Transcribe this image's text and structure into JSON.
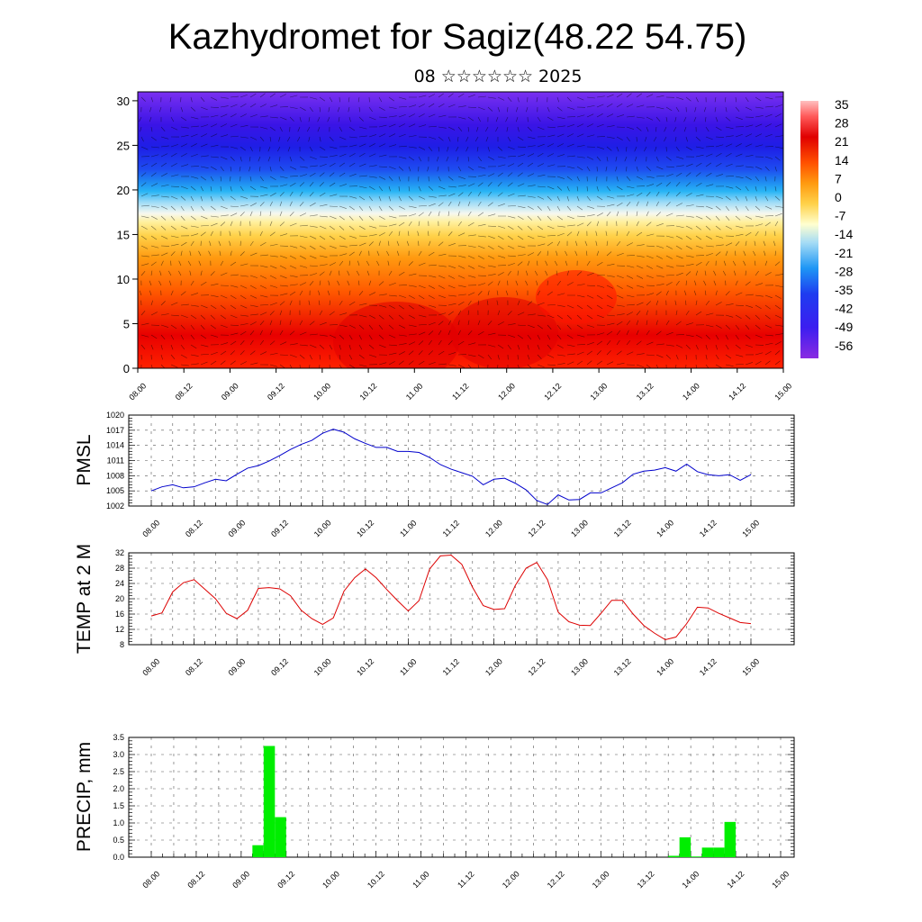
{
  "header": {
    "title": "Kazhydromet for Sagiz(48.22 54.75)",
    "subtitle": "08 ☆☆☆☆☆☆ 2025"
  },
  "colors": {
    "pmsl_line": "#0000cc",
    "temp_line": "#dd0000",
    "precip_bar": "#00ee00",
    "frame": "#000000",
    "grid": "#555555"
  },
  "chart_data": [
    {
      "type": "heatmap",
      "name": "cross-section",
      "x_ticks": [
        "08.00",
        "08.12",
        "09.00",
        "09.12",
        "10.00",
        "10.12",
        "11.00",
        "11.12",
        "12.00",
        "12.12",
        "13.00",
        "13.12",
        "14.00",
        "14.12",
        "15.00"
      ],
      "y_ticks": [
        "0",
        "5",
        "10",
        "15",
        "20",
        "25",
        "30"
      ],
      "ylim": [
        0,
        31
      ],
      "colorbar_labels": [
        "35",
        "28",
        "21",
        "14",
        "7",
        "0",
        "-7",
        "-14",
        "-21",
        "-28",
        "-35",
        "-42",
        "-49",
        "-56"
      ],
      "colorscale": [
        "#8a2be2",
        "#4b1ef0",
        "#1e1ee6",
        "#1e5cf0",
        "#1eaaf5",
        "#8fd3f5",
        "#ffffcc",
        "#ffe066",
        "#ffb31a",
        "#ff7f00",
        "#ff4500",
        "#e60000",
        "#ff6666"
      ],
      "overlay": "wind vectors"
    },
    {
      "type": "line",
      "name": "pmsl",
      "ylabel": "PMSL",
      "ylim": [
        1002,
        1020
      ],
      "y_ticks": [
        "1002",
        "1005",
        "1008",
        "1011",
        "1014",
        "1017",
        "1020"
      ],
      "x_ticks": [
        "08.00",
        "08.12",
        "09.00",
        "09.12",
        "10.00",
        "10.12",
        "11.00",
        "11.12",
        "12.00",
        "12.12",
        "13.00",
        "13.12",
        "14.00",
        "14.12",
        "15.00"
      ],
      "x_hours": [
        0,
        3,
        6,
        9,
        12,
        15,
        18,
        21,
        24,
        27,
        30,
        33,
        36,
        39,
        42,
        45,
        48,
        51,
        54,
        57,
        60,
        63,
        66,
        69,
        72,
        75,
        78,
        81,
        84,
        87,
        90,
        93,
        96,
        99,
        102,
        105,
        108,
        111,
        114,
        117,
        120,
        123,
        126,
        129,
        132,
        135,
        138,
        141,
        144,
        147,
        150,
        153,
        156,
        159,
        162,
        165,
        168
      ],
      "values": [
        1005.0,
        1005.8,
        1006.2,
        1005.6,
        1005.8,
        1006.6,
        1007.3,
        1007.0,
        1008.3,
        1009.5,
        1010.0,
        1010.9,
        1012.0,
        1013.2,
        1014.2,
        1015.0,
        1016.4,
        1017.2,
        1016.6,
        1015.3,
        1014.4,
        1013.6,
        1013.6,
        1012.8,
        1012.8,
        1012.6,
        1011.6,
        1010.2,
        1009.3,
        1008.6,
        1007.9,
        1006.2,
        1007.3,
        1007.5,
        1006.5,
        1005.2,
        1003.1,
        1002.3,
        1004.2,
        1003.2,
        1003.3,
        1004.6,
        1004.6,
        1005.6,
        1006.6,
        1008.3,
        1008.9,
        1009.1,
        1009.6,
        1008.9,
        1010.3,
        1008.8,
        1008.2,
        1008.0,
        1008.2,
        1007.1,
        1008.2
      ]
    },
    {
      "type": "line",
      "name": "temp",
      "ylabel": "TEMP at 2 M",
      "ylim": [
        8,
        32
      ],
      "y_ticks": [
        "8",
        "12",
        "16",
        "20",
        "24",
        "28",
        "32"
      ],
      "x_ticks": [
        "08.00",
        "08.12",
        "09.00",
        "09.12",
        "10.00",
        "10.12",
        "11.00",
        "11.12",
        "12.00",
        "12.12",
        "13.00",
        "13.12",
        "14.00",
        "14.12",
        "15.00"
      ],
      "x_hours": [
        0,
        3,
        6,
        9,
        12,
        15,
        18,
        21,
        24,
        27,
        30,
        33,
        36,
        39,
        42,
        45,
        48,
        51,
        54,
        57,
        60,
        63,
        66,
        69,
        72,
        75,
        78,
        81,
        84,
        87,
        90,
        93,
        96,
        99,
        102,
        105,
        108,
        111,
        114,
        117,
        120,
        123,
        126,
        129,
        132,
        135,
        138,
        141,
        144,
        147,
        150,
        153,
        156,
        159,
        162,
        165,
        168
      ],
      "values": [
        15.5,
        16.3,
        21.8,
        24.2,
        25.0,
        22.5,
        20.0,
        16.2,
        14.8,
        17.0,
        22.7,
        22.9,
        22.6,
        20.8,
        17.0,
        14.8,
        13.3,
        15.0,
        22.0,
        25.5,
        27.8,
        25.5,
        22.4,
        19.5,
        16.8,
        19.5,
        27.8,
        31.2,
        31.4,
        29.0,
        23.0,
        18.2,
        17.2,
        17.4,
        23.5,
        28.0,
        29.5,
        25.0,
        16.5,
        14.0,
        13.1,
        13.0,
        16.2,
        19.6,
        19.6,
        16.0,
        13.0,
        11.0,
        9.3,
        10.0,
        13.5,
        17.8,
        17.6,
        16.2,
        15.0,
        13.8,
        13.5
      ]
    },
    {
      "type": "bar",
      "name": "precip",
      "ylabel": "PRECIP, mm",
      "ylim": [
        0,
        3.5
      ],
      "y_ticks": [
        "0.0",
        "0.5",
        "1.0",
        "1.5",
        "2.0",
        "2.5",
        "3.0",
        "3.5"
      ],
      "x_ticks": [
        "08.00",
        "08.12",
        "09.00",
        "09.12",
        "10.00",
        "10.12",
        "11.00",
        "11.12",
        "12.00",
        "12.12",
        "13.00",
        "13.12",
        "14.00",
        "14.12",
        "15.00"
      ],
      "bar_start_hours": [
        27,
        30,
        33,
        138,
        141,
        144,
        147,
        150,
        153
      ],
      "values": [
        0.35,
        3.25,
        1.17,
        0.04,
        0.58,
        0.02,
        0.28,
        0.28,
        1.03
      ]
    }
  ]
}
